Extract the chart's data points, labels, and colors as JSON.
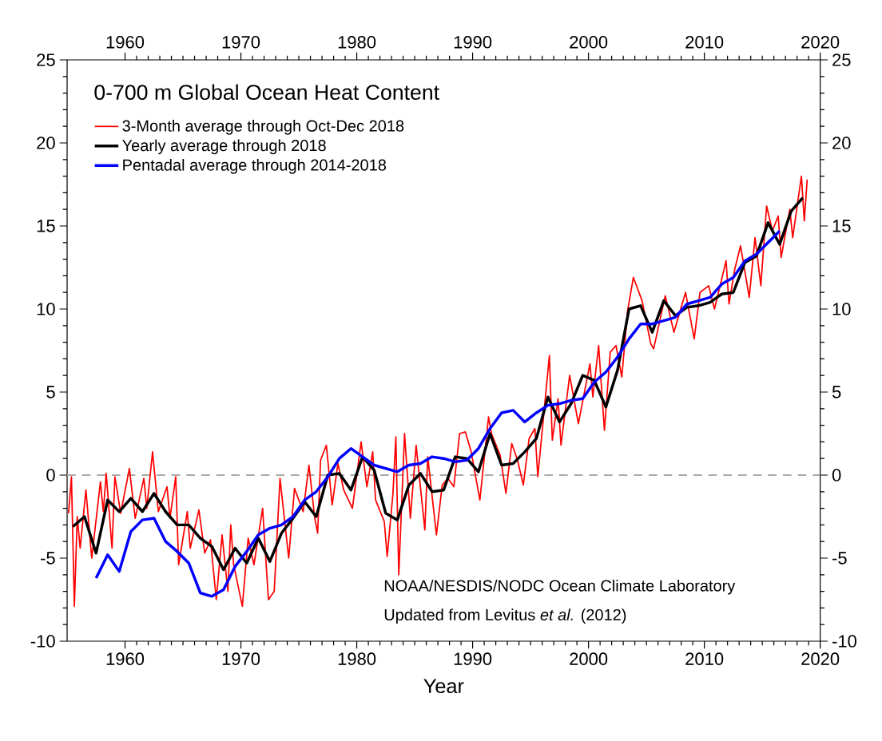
{
  "chart_data": {
    "type": "line",
    "title": "0-700 m Global Ocean Heat Content",
    "xlabel": "Year",
    "annotations": [
      "NOAA/NESDIS/NODC Ocean Climate Laboratory",
      "Updated from Levitus *et al.* (2012)"
    ],
    "xlim": [
      1955,
      2020
    ],
    "xticks": [
      1960,
      1970,
      1980,
      1990,
      2000,
      2010,
      2020
    ],
    "x2lim": [
      1955,
      2020
    ],
    "x2ticks": [
      1960,
      1970,
      1980,
      1990,
      2000,
      2010,
      2020
    ],
    "ylim": [
      -10,
      25
    ],
    "yticks": [
      -10,
      -5,
      0,
      5,
      10,
      15,
      20,
      25
    ],
    "y2lim": [
      -10,
      25
    ],
    "y2ticks": [
      -10,
      -5,
      0,
      5,
      10,
      15,
      20,
      25
    ],
    "legend": "top left",
    "ref_lines": [
      {
        "axis": "y",
        "value": 0,
        "color": "#aaaaaa",
        "line_style": "dashed"
      }
    ],
    "series": [
      {
        "name": "3-Month average through Oct-Dec 2018",
        "color": "#ff0000",
        "x": [
          1955.125,
          1955.375,
          1955.625,
          1955.875,
          1956.125,
          1956.625,
          1957.125,
          1957.875,
          1958.125,
          1958.375,
          1958.875,
          1959.125,
          1959.625,
          1960.375,
          1960.875,
          1961.625,
          1961.875,
          1962.375,
          1962.875,
          1963.625,
          1963.875,
          1964.375,
          1964.625,
          1965.375,
          1965.625,
          1966.375,
          1966.875,
          1967.375,
          1967.875,
          1968.375,
          1968.875,
          1969.125,
          1969.375,
          1970.125,
          1970.625,
          1971.125,
          1971.875,
          1972.375,
          1972.875,
          1973.375,
          1974.125,
          1974.625,
          1975.375,
          1975.875,
          1976.375,
          1976.625,
          1976.875,
          1977.375,
          1977.875,
          1978.375,
          1978.875,
          1979.625,
          1980.375,
          1980.875,
          1981.375,
          1981.625,
          1982.375,
          1982.625,
          1983.125,
          1983.375,
          1983.625,
          1984.125,
          1984.625,
          1985.125,
          1985.875,
          1986.125,
          1986.875,
          1987.375,
          1987.875,
          1988.375,
          1988.875,
          1989.375,
          1989.875,
          1990.625,
          1991.375,
          1991.625,
          1992.375,
          1992.875,
          1993.375,
          1993.875,
          1994.375,
          1994.875,
          1995.375,
          1995.625,
          1996.625,
          1996.875,
          1997.375,
          1997.625,
          1998.375,
          1999.125,
          2000.125,
          2000.375,
          2000.875,
          2001.375,
          2001.875,
          2002.375,
          2002.875,
          2003.375,
          2003.875,
          2004.625,
          2005.375,
          2005.625,
          2006.625,
          2007.375,
          2008.375,
          2009.125,
          2009.625,
          2010.375,
          2010.875,
          2011.875,
          2012.125,
          2012.625,
          2013.125,
          2013.875,
          2014.375,
          2014.875,
          2015.375,
          2015.875,
          2016.375,
          2016.625,
          2017.375,
          2017.625,
          2018.375,
          2018.625,
          2018.875
        ],
        "values": [
          -2.3,
          -0.1,
          -7.9,
          -2.5,
          -4.4,
          -0.9,
          -5.0,
          -0.4,
          -2.2,
          0.1,
          -4.4,
          -0.1,
          -2.3,
          0.4,
          -2.6,
          -0.2,
          -2.0,
          1.4,
          -2.2,
          -0.7,
          -2.6,
          -0.1,
          -5.4,
          -2.2,
          -4.4,
          -2.1,
          -4.7,
          -3.9,
          -7.5,
          -3.6,
          -7.0,
          -3.0,
          -5.4,
          -7.9,
          -3.8,
          -5.4,
          -2.0,
          -7.5,
          -7.0,
          -0.2,
          -5.0,
          -0.8,
          -2.2,
          0.6,
          -2.6,
          -3.5,
          0.9,
          1.8,
          -1.8,
          0.7,
          -0.9,
          -2.0,
          2.0,
          -0.7,
          1.4,
          -1.5,
          -2.8,
          -4.9,
          -1.1,
          2.3,
          -6.0,
          2.5,
          -2.6,
          1.8,
          -3.3,
          1.1,
          -3.6,
          -0.6,
          -0.2,
          -0.7,
          2.5,
          2.6,
          1.4,
          -1.5,
          3.5,
          2.5,
          1.2,
          -1.1,
          1.9,
          0.9,
          -0.6,
          2.2,
          2.8,
          -0.1,
          7.2,
          2.1,
          4.6,
          1.8,
          6.0,
          3.1,
          6.7,
          4.7,
          7.8,
          2.7,
          7.4,
          7.8,
          5.9,
          9.9,
          11.9,
          10.5,
          7.9,
          7.6,
          10.8,
          8.6,
          11.0,
          8.2,
          11.0,
          11.4,
          10.0,
          12.9,
          10.3,
          12.4,
          13.8,
          10.7,
          14.3,
          11.4,
          16.2,
          14.7,
          15.6,
          13.1,
          16.0,
          14.3,
          18.0,
          15.3,
          17.8
        ]
      },
      {
        "name": "Yearly average through 2018",
        "color": "#000000",
        "x": [
          1955.5,
          1956.5,
          1957.5,
          1958.5,
          1959.5,
          1960.5,
          1961.5,
          1962.5,
          1963.5,
          1964.5,
          1965.5,
          1966.5,
          1967.5,
          1968.5,
          1969.5,
          1970.5,
          1971.5,
          1972.5,
          1973.5,
          1974.5,
          1975.5,
          1976.5,
          1977.5,
          1978.5,
          1979.5,
          1980.5,
          1981.5,
          1982.5,
          1983.5,
          1984.5,
          1985.5,
          1986.5,
          1987.5,
          1988.5,
          1989.5,
          1990.5,
          1991.5,
          1992.5,
          1993.5,
          1994.5,
          1995.5,
          1996.5,
          1997.5,
          1998.5,
          1999.5,
          2000.5,
          2001.5,
          2002.5,
          2003.5,
          2004.5,
          2005.5,
          2006.5,
          2007.5,
          2008.5,
          2009.5,
          2010.5,
          2011.5,
          2012.5,
          2013.5,
          2014.5,
          2015.5,
          2016.5,
          2017.5,
          2018.5
        ],
        "values": [
          -3.1,
          -2.5,
          -4.7,
          -1.5,
          -2.2,
          -1.4,
          -2.2,
          -1.1,
          -2.2,
          -3.0,
          -3.0,
          -3.8,
          -4.3,
          -5.7,
          -4.4,
          -5.3,
          -3.8,
          -5.2,
          -3.5,
          -2.6,
          -1.6,
          -2.5,
          0.0,
          0.1,
          -0.9,
          1.1,
          0.3,
          -2.3,
          -2.7,
          -0.6,
          0.1,
          -1.0,
          -0.9,
          1.1,
          1.0,
          0.2,
          2.5,
          0.6,
          0.7,
          1.4,
          2.2,
          4.7,
          3.2,
          4.3,
          6.0,
          5.7,
          4.1,
          6.3,
          10.0,
          10.2,
          8.6,
          10.5,
          9.6,
          10.1,
          10.2,
          10.4,
          10.9,
          11.0,
          12.8,
          13.2,
          15.2,
          13.9,
          15.9,
          16.7
        ]
      },
      {
        "name": "Pentadal average through 2014-2018",
        "color": "#0000ff",
        "x": [
          1957.5,
          1958.5,
          1959.5,
          1960.5,
          1961.5,
          1962.5,
          1963.5,
          1964.5,
          1965.5,
          1966.5,
          1967.5,
          1968.5,
          1969.5,
          1970.5,
          1971.5,
          1972.5,
          1973.5,
          1974.5,
          1975.5,
          1976.5,
          1977.5,
          1978.5,
          1979.5,
          1980.5,
          1981.5,
          1982.5,
          1983.5,
          1984.5,
          1985.5,
          1986.5,
          1987.5,
          1988.5,
          1989.5,
          1990.5,
          1991.5,
          1992.5,
          1993.5,
          1994.5,
          1995.5,
          1996.5,
          1997.5,
          1998.5,
          1999.5,
          2000.5,
          2001.5,
          2002.5,
          2003.5,
          2004.5,
          2005.5,
          2006.5,
          2007.5,
          2008.5,
          2009.5,
          2010.5,
          2011.5,
          2012.5,
          2013.5,
          2014.5,
          2015.5,
          2016.5
        ],
        "values": [
          -6.2,
          -4.8,
          -5.8,
          -3.4,
          -2.7,
          -2.6,
          -4.0,
          -4.6,
          -5.3,
          -7.1,
          -7.3,
          -6.9,
          -5.5,
          -4.6,
          -3.6,
          -3.2,
          -3.0,
          -2.5,
          -1.5,
          -1.0,
          -0.1,
          1.0,
          1.6,
          1.1,
          0.6,
          0.4,
          0.2,
          0.6,
          0.7,
          1.1,
          1.0,
          0.8,
          0.9,
          1.6,
          2.8,
          3.75,
          3.9,
          3.2,
          3.75,
          4.2,
          4.3,
          4.5,
          4.6,
          5.6,
          6.2,
          7.1,
          8.2,
          9.1,
          9.1,
          9.3,
          9.5,
          10.3,
          10.5,
          10.7,
          11.5,
          11.9,
          12.9,
          13.3,
          14.0,
          14.7
        ]
      }
    ]
  }
}
